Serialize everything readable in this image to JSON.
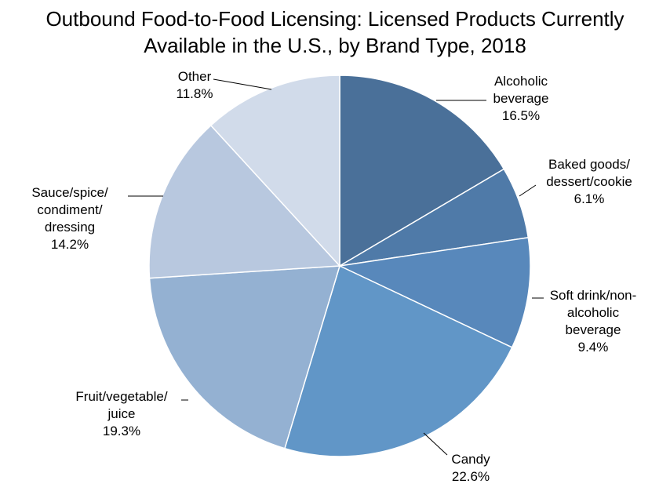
{
  "chart_data": {
    "type": "pie",
    "title": "Outbound Food-to-Food Licensing: Licensed Products Currently Available in the U.S., by Brand Type, 2018",
    "title_lines": [
      "Outbound Food-to-Food Licensing: Licensed Products Currently",
      "Available in the U.S., by Brand Type, 2018"
    ],
    "start": "12 o'clock",
    "direction": "clockwise",
    "slices": [
      {
        "label": "Alcoholic beverage",
        "label_lines": [
          "Alcoholic",
          "beverage"
        ],
        "value": 16.5,
        "display": "16.5%",
        "color": "#4a7099"
      },
      {
        "label": "Baked goods/ dessert/cookie",
        "label_lines": [
          "Baked goods/",
          "dessert/cookie"
        ],
        "value": 6.1,
        "display": "6.1%",
        "color": "#4f7aa8"
      },
      {
        "label": "Soft drink/non-alcoholic beverage",
        "label_lines": [
          "Soft drink/non-",
          "alcoholic",
          "beverage"
        ],
        "value": 9.4,
        "display": "9.4%",
        "color": "#5888bb"
      },
      {
        "label": "Candy",
        "label_lines": [
          "Candy"
        ],
        "value": 22.6,
        "display": "22.6%",
        "color": "#6196c7"
      },
      {
        "label": "Fruit/vegetable/ juice",
        "label_lines": [
          "Fruit/vegetable/",
          "juice"
        ],
        "value": 19.3,
        "display": "19.3%",
        "color": "#94b1d2"
      },
      {
        "label": "Sauce/spice/ condiment/ dressing",
        "label_lines": [
          "Sauce/spice/",
          "condiment/",
          "dressing"
        ],
        "value": 14.2,
        "display": "14.2%",
        "color": "#b8c8df"
      },
      {
        "label": "Other",
        "label_lines": [
          "Other"
        ],
        "value": 11.8,
        "display": "11.8%",
        "color": "#d1dbea"
      }
    ]
  }
}
